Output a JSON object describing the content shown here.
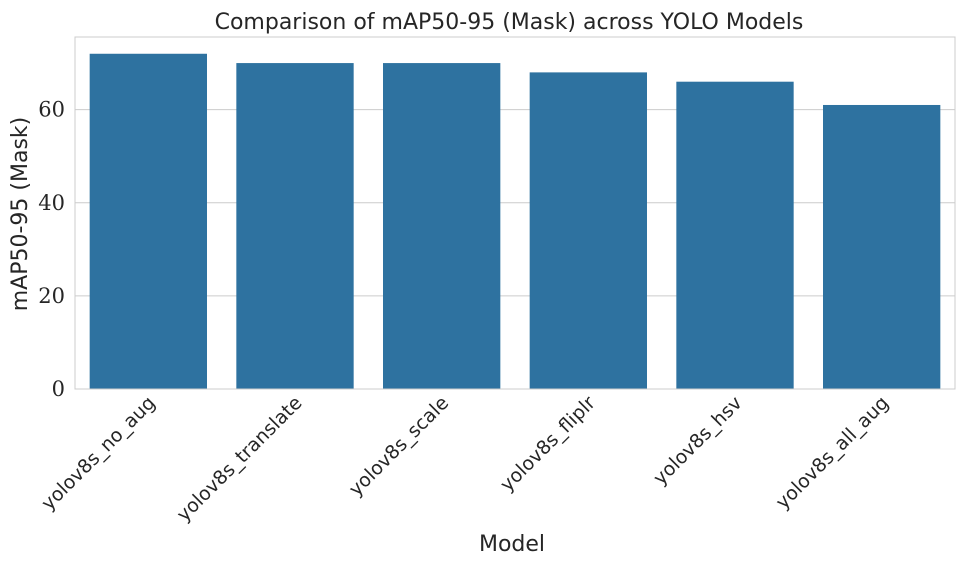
{
  "chart_data": {
    "type": "bar",
    "title": "Comparison of mAP50-95 (Mask) across YOLO Models",
    "xlabel": "Model",
    "ylabel": "mAP50-95 (Mask)",
    "categories": [
      "yolov8s_no_aug",
      "yolov8s_translate",
      "yolov8s_scale",
      "yolov8s_fliplr",
      "yolov8s_hsv",
      "yolov8s_all_aug"
    ],
    "values": [
      72,
      70,
      70,
      68,
      66,
      61
    ],
    "ylim": [
      0,
      75.6
    ],
    "yticks": [
      0,
      20,
      40,
      60
    ],
    "grid": "horizontal",
    "bar_color": "#2e72a0",
    "grid_color": "#cccccc",
    "spine_color": "#cccccc"
  }
}
